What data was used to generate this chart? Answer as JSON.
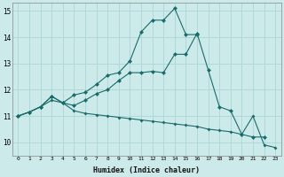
{
  "xlabel": "Humidex (Indice chaleur)",
  "background_color": "#cdeaea",
  "grid_color": "#b0d8d8",
  "line_color": "#1a6b6b",
  "xlim": [
    -0.5,
    23.5
  ],
  "ylim": [
    9.5,
    15.3
  ],
  "yticks": [
    10,
    11,
    12,
    13,
    14,
    15
  ],
  "xticks": [
    0,
    1,
    2,
    3,
    4,
    5,
    6,
    7,
    8,
    9,
    10,
    11,
    12,
    13,
    14,
    15,
    16,
    17,
    18,
    19,
    20,
    21,
    22,
    23
  ],
  "series1_x": [
    0,
    1,
    2,
    3,
    4,
    5,
    6,
    7,
    8,
    9,
    10,
    11,
    12,
    13,
    14,
    15,
    16,
    17,
    18,
    19,
    20,
    21,
    22
  ],
  "series1_y": [
    11.0,
    11.15,
    11.35,
    11.75,
    11.5,
    11.4,
    11.6,
    11.85,
    12.0,
    12.35,
    12.65,
    12.65,
    12.7,
    12.65,
    13.35,
    13.35,
    14.15,
    12.75,
    11.35,
    11.2,
    10.3,
    10.2,
    10.2
  ],
  "series2_x": [
    0,
    1,
    2,
    3,
    4,
    5,
    6,
    7,
    8,
    9,
    10,
    11,
    12,
    13,
    14,
    15,
    16
  ],
  "series2_y": [
    11.0,
    11.15,
    11.35,
    11.75,
    11.5,
    11.8,
    11.9,
    12.2,
    12.55,
    12.65,
    13.1,
    14.2,
    14.65,
    14.65,
    15.1,
    14.1,
    14.1
  ],
  "series3_x": [
    0,
    1,
    2,
    3,
    4,
    5,
    6,
    7,
    8,
    9,
    10,
    11,
    12,
    13,
    14,
    15,
    16,
    17,
    18,
    19,
    20,
    21,
    22,
    23
  ],
  "series3_y": [
    11.0,
    11.15,
    11.35,
    11.6,
    11.5,
    11.2,
    11.1,
    11.05,
    11.0,
    10.95,
    10.9,
    10.85,
    10.8,
    10.75,
    10.7,
    10.65,
    10.6,
    10.5,
    10.45,
    10.4,
    10.3,
    11.0,
    9.9,
    9.8
  ]
}
